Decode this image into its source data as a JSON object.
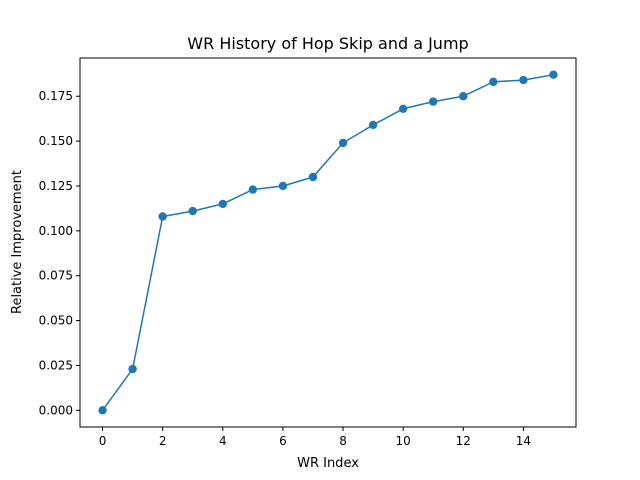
{
  "chart_data": {
    "type": "line",
    "title": "WR History of Hop Skip and a Jump",
    "xlabel": "WR Index",
    "ylabel": "Relative Improvement",
    "xlim": [
      -0.75,
      15.75
    ],
    "ylim": [
      -0.0093,
      0.1963
    ],
    "xticks": [
      0,
      2,
      4,
      6,
      8,
      10,
      12,
      14
    ],
    "xtick_labels": [
      "0",
      "2",
      "4",
      "6",
      "8",
      "10",
      "12",
      "14"
    ],
    "yticks": [
      0.0,
      0.025,
      0.05,
      0.075,
      0.1,
      0.125,
      0.15,
      0.175
    ],
    "ytick_labels": [
      "0.000",
      "0.025",
      "0.050",
      "0.075",
      "0.100",
      "0.125",
      "0.150",
      "0.175"
    ],
    "grid": false,
    "legend": "none",
    "color": "#1f77b4",
    "marker": "circle",
    "x": [
      0,
      1,
      2,
      3,
      4,
      5,
      6,
      7,
      8,
      9,
      10,
      11,
      12,
      13,
      14,
      15
    ],
    "y": [
      0.0,
      0.023,
      0.108,
      0.111,
      0.115,
      0.123,
      0.125,
      0.13,
      0.149,
      0.159,
      0.168,
      0.172,
      0.175,
      0.183,
      0.184,
      0.187
    ]
  }
}
